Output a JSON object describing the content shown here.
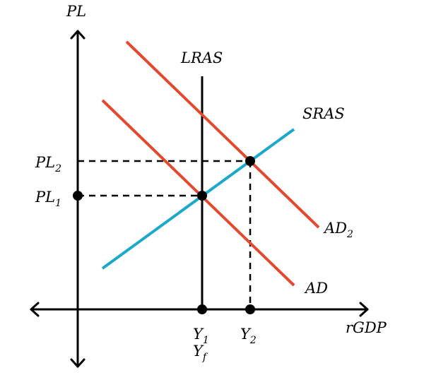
{
  "axes": {
    "y_label": "PL",
    "x_label": "rGDP"
  },
  "curves": {
    "lras": {
      "label": "LRAS",
      "color": "#000000"
    },
    "sras": {
      "label": "SRAS",
      "color": "#1ca9c9"
    },
    "ad": {
      "label": "AD",
      "color": "#e2492f"
    },
    "ad2": {
      "label": "AD",
      "sub": "2",
      "color": "#e2492f"
    }
  },
  "levels": {
    "pl1": {
      "label": "PL",
      "sub": "1"
    },
    "pl2": {
      "label": "PL",
      "sub": "2"
    },
    "y1": {
      "label": "Y",
      "sub": "1"
    },
    "yf": {
      "label": "Y",
      "sub": "f"
    },
    "y2": {
      "label": "Y",
      "sub": "2"
    }
  }
}
